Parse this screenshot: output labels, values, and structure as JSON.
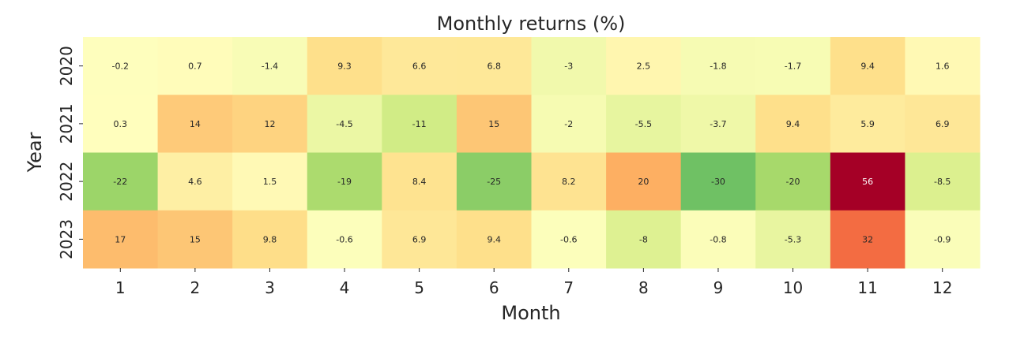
{
  "chart_data": {
    "type": "heatmap",
    "title": "Monthly returns (%)",
    "xlabel": "Month",
    "ylabel": "Year",
    "x": [
      "1",
      "2",
      "3",
      "4",
      "5",
      "6",
      "7",
      "8",
      "9",
      "10",
      "11",
      "12"
    ],
    "y": [
      "2020",
      "2021",
      "2022",
      "2023"
    ],
    "values": [
      [
        -0.2,
        0.7,
        -1.4,
        9.3,
        6.6,
        6.8,
        -3,
        2.5,
        -1.8,
        -1.7,
        9.4,
        1.6
      ],
      [
        0.3,
        14,
        12,
        -4.5,
        -11,
        15,
        -2,
        -5.5,
        -3.7,
        9.4,
        5.9,
        6.9
      ],
      [
        -22,
        4.6,
        1.5,
        -19,
        8.4,
        -25,
        8.2,
        20,
        -30,
        -20,
        56,
        -8.5
      ],
      [
        17,
        15,
        9.8,
        -0.6,
        6.9,
        9.4,
        -0.6,
        -8,
        -0.8,
        -5.3,
        32,
        -0.9
      ]
    ],
    "labels": [
      [
        "-0.2",
        "0.7",
        "-1.4",
        "9.3",
        "6.6",
        "6.8",
        "-3",
        "2.5",
        "-1.8",
        "-1.7",
        "9.4",
        "1.6"
      ],
      [
        "0.3",
        "14",
        "12",
        "-4.5",
        "-11",
        "15",
        "-2",
        "-5.5",
        "-3.7",
        "9.4",
        "5.9",
        "6.9"
      ],
      [
        "-22",
        "4.6",
        "1.5",
        "-19",
        "8.4",
        "-25",
        "8.2",
        "20",
        "-30",
        "-20",
        "56",
        "-8.5"
      ],
      [
        "17",
        "15",
        "9.8",
        "-0.6",
        "6.9",
        "9.4",
        "-0.6",
        "-8",
        "-0.8",
        "-5.3",
        "32",
        "-0.9"
      ]
    ],
    "colormap": "RdYlGn_r",
    "vmin": -56,
    "vmax": 56,
    "grid": false,
    "legend": "none"
  }
}
